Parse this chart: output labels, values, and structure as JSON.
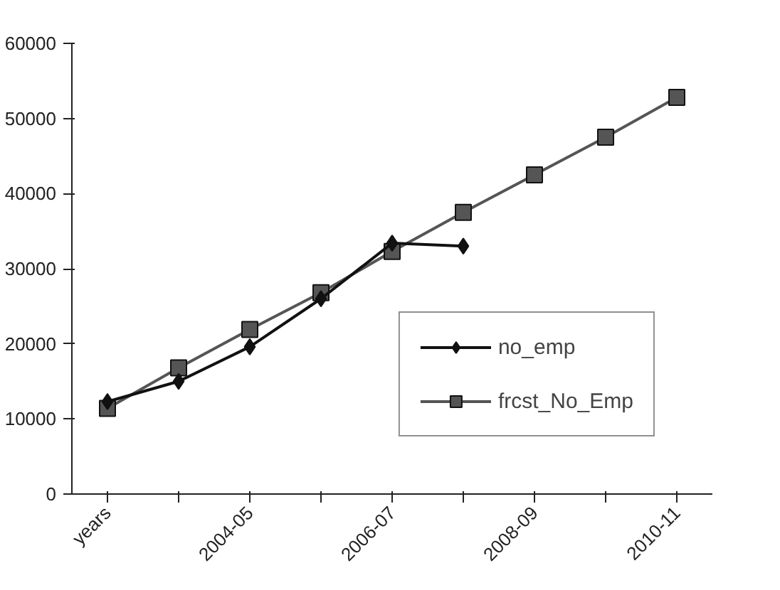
{
  "chart_data": {
    "type": "line",
    "categories": [
      "years",
      null,
      "2004-05",
      null,
      "2006-07",
      null,
      "2008-09",
      null,
      "2010-11"
    ],
    "ylim": [
      0,
      60000
    ],
    "yticks": [
      0,
      10000,
      20000,
      30000,
      40000,
      50000,
      60000
    ],
    "grid": false,
    "legend": "bottom right",
    "series": [
      {
        "name": "no_emp",
        "color": "#111111",
        "marker": "diamond",
        "values": [
          12300,
          15000,
          19600,
          26000,
          33400,
          33000,
          null,
          null,
          null
        ]
      },
      {
        "name": "frcst_No_Emp",
        "color": "#555555",
        "marker": "square",
        "values": [
          11400,
          16800,
          21900,
          26800,
          32300,
          37500,
          42500,
          47500,
          52800
        ]
      }
    ]
  }
}
